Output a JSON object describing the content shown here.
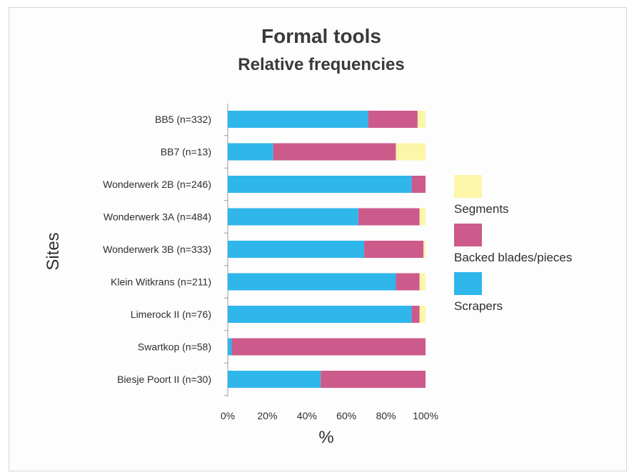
{
  "chart_data": {
    "type": "bar",
    "orientation": "horizontal",
    "stacked": true,
    "normalized": true,
    "title": "Formal tools",
    "subtitle": "Relative frequencies",
    "xlabel": "%",
    "ylabel": "Sites",
    "xlim": [
      0,
      100
    ],
    "xticks": [
      "0%",
      "20%",
      "40%",
      "60%",
      "80%",
      "100%"
    ],
    "categories": [
      "BB5 (n=332)",
      "BB7 (n=13)",
      "Wonderwerk 2B (n=246)",
      "Wonderwerk 3A (n=484)",
      "Wonderwerk 3B (n=333)",
      "Klein Witkrans (n=211)",
      "Limerock II (n=76)",
      "Swartkop (n=58)",
      "Biesje Poort II (n=30)"
    ],
    "series": [
      {
        "name": "Scrapers",
        "color": "#2fb6ea",
        "values": [
          71,
          23,
          93,
          66,
          69,
          85,
          93,
          2,
          47
        ]
      },
      {
        "name": "Backed blades/pieces",
        "color": "#cc5a8a",
        "values": [
          25,
          62,
          7,
          31,
          30,
          12,
          4,
          98,
          53
        ]
      },
      {
        "name": "Segments",
        "color": "#fdf5a8",
        "values": [
          4,
          15,
          0,
          3,
          1,
          3,
          3,
          0,
          0
        ]
      }
    ],
    "legend": {
      "position": "right",
      "order": [
        "Segments",
        "Backed blades/pieces",
        "Scrapers"
      ]
    },
    "grid": false
  }
}
